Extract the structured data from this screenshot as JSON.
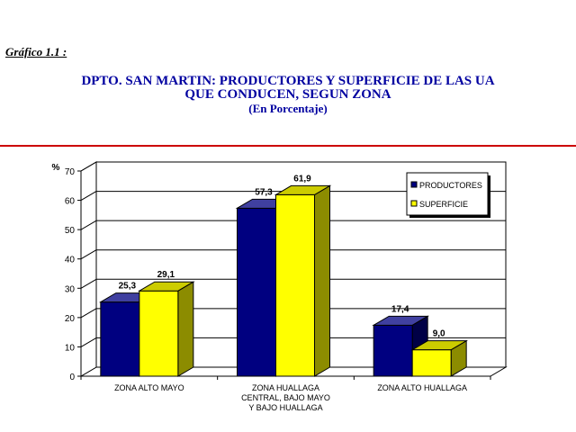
{
  "header": {
    "caption": "Gráfico 1.1 :",
    "title_line1": "DPTO. SAN MARTIN: PRODUCTORES Y SUPERFICIE DE LAS UA",
    "title_line2": "QUE CONDUCEN, SEGUN ZONA",
    "subtitle": "(En Porcentaje)"
  },
  "colors": {
    "productores": "#000080",
    "superficie": "#ffff00",
    "title": "#0000a0",
    "rule": "#cc0000"
  },
  "chart_data": {
    "type": "bar",
    "ylabel": "%",
    "ylim": [
      0,
      70
    ],
    "yticks": [
      0,
      10,
      20,
      30,
      40,
      50,
      60,
      70
    ],
    "grid": true,
    "legend_position": "top-right",
    "categories": [
      [
        "ZONA ALTO MAYO"
      ],
      [
        "ZONA HUALLAGA",
        "CENTRAL, BAJO MAYO",
        "Y BAJO HUALLAGA"
      ],
      [
        "ZONA ALTO HUALLAGA"
      ]
    ],
    "series": [
      {
        "name": "PRODUCTORES",
        "values": [
          25.3,
          57.3,
          17.4
        ],
        "labels": [
          "25,3",
          "57,3",
          "17,4"
        ]
      },
      {
        "name": "SUPERFICIE",
        "values": [
          29.1,
          61.9,
          9.0
        ],
        "labels": [
          "29,1",
          "61,9",
          "9,0"
        ]
      }
    ]
  }
}
